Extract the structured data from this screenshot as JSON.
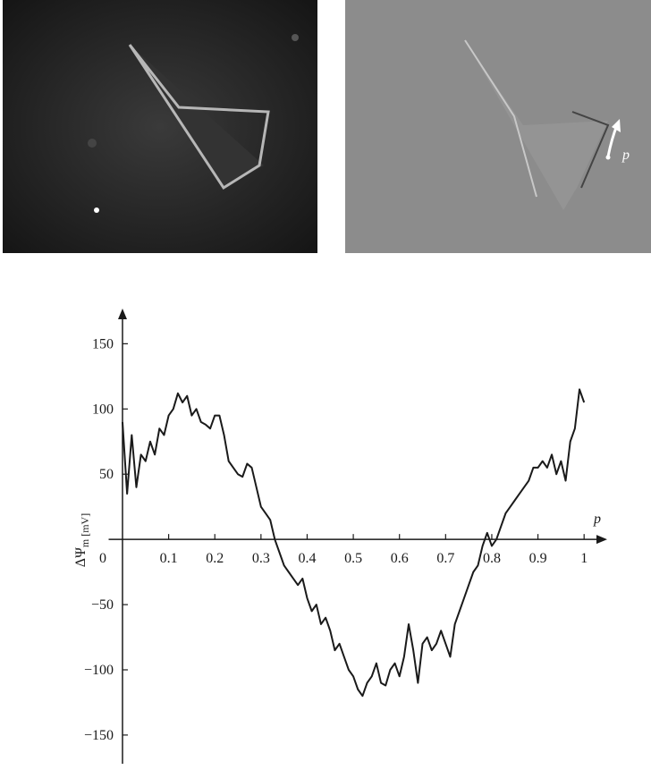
{
  "chart_data": {
    "type": "line",
    "x_label": "p",
    "y_label": {
      "main": "ΔΨ",
      "sub": "m [mV]"
    },
    "x": [
      0,
      0.01,
      0.02,
      0.03,
      0.04,
      0.05,
      0.06,
      0.07,
      0.08,
      0.09,
      0.1,
      0.11,
      0.12,
      0.13,
      0.14,
      0.15,
      0.16,
      0.17,
      0.18,
      0.19,
      0.2,
      0.21,
      0.22,
      0.23,
      0.24,
      0.25,
      0.26,
      0.27,
      0.28,
      0.29,
      0.3,
      0.31,
      0.32,
      0.33,
      0.34,
      0.35,
      0.36,
      0.37,
      0.38,
      0.39,
      0.4,
      0.41,
      0.42,
      0.43,
      0.44,
      0.45,
      0.46,
      0.47,
      0.48,
      0.49,
      0.5,
      0.51,
      0.52,
      0.53,
      0.54,
      0.55,
      0.56,
      0.57,
      0.58,
      0.59,
      0.6,
      0.61,
      0.62,
      0.63,
      0.64,
      0.65,
      0.66,
      0.67,
      0.68,
      0.69,
      0.7,
      0.71,
      0.72,
      0.73,
      0.74,
      0.75,
      0.76,
      0.77,
      0.78,
      0.79,
      0.8,
      0.81,
      0.82,
      0.83,
      0.84,
      0.85,
      0.86,
      0.87,
      0.88,
      0.89,
      0.9,
      0.91,
      0.92,
      0.93,
      0.94,
      0.95,
      0.96,
      0.97,
      0.98,
      0.99,
      1
    ],
    "series": [
      {
        "color": "#1a1a1a",
        "values": [
          90,
          35,
          80,
          40,
          65,
          60,
          75,
          65,
          85,
          80,
          95,
          100,
          112,
          105,
          110,
          95,
          100,
          90,
          88,
          85,
          95,
          95,
          80,
          60,
          55,
          50,
          48,
          58,
          55,
          40,
          25,
          20,
          15,
          0,
          -10,
          -20,
          -25,
          -30,
          -35,
          -30,
          -45,
          -55,
          -50,
          -65,
          -60,
          -70,
          -85,
          -80,
          -90,
          -100,
          -105,
          -115,
          -120,
          -110,
          -105,
          -95,
          -110,
          -112,
          -100,
          -95,
          -105,
          -90,
          -65,
          -85,
          -110,
          -80,
          -75,
          -85,
          -80,
          -70,
          -80,
          -90,
          -65,
          -55,
          -45,
          -35,
          -25,
          -20,
          -5,
          5,
          -5,
          0,
          10,
          20,
          25,
          30,
          35,
          40,
          45,
          55,
          55,
          60,
          55,
          65,
          50,
          60,
          45,
          75,
          85,
          115,
          105
        ]
      }
    ],
    "xlim": [
      -0.03,
      1.05
    ],
    "ylim": [
      -172,
      177
    ],
    "xticks": [
      0,
      0.1,
      0.2,
      0.3,
      0.4,
      0.5,
      0.6,
      0.7,
      0.8,
      0.9,
      1
    ],
    "yticks": [
      {
        "value": -150,
        "label": "−150"
      },
      {
        "value": -100,
        "label": "−100"
      },
      {
        "value": -50,
        "label": "−50"
      },
      50,
      100,
      150
    ]
  },
  "panels": {
    "arrow_label": "p"
  }
}
